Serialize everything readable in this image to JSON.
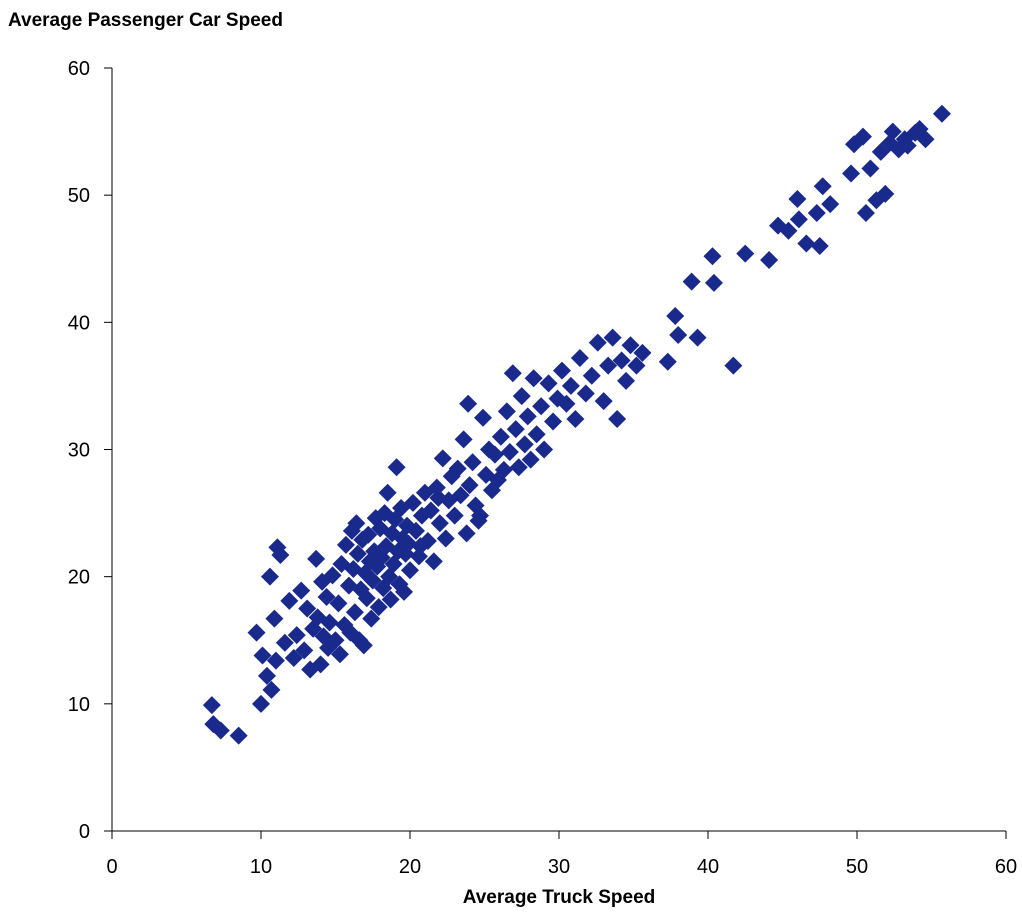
{
  "chart_data": {
    "type": "scatter",
    "title": "",
    "xlabel": "Average Truck Speed",
    "ylabel": "Average Passenger Car Speed",
    "xlim": [
      0,
      60
    ],
    "ylim": [
      0,
      60
    ],
    "x_ticks": [
      0,
      10,
      20,
      30,
      40,
      50,
      60
    ],
    "y_ticks": [
      0,
      10,
      20,
      30,
      40,
      50,
      60
    ],
    "grid": false,
    "legend": "none",
    "marker": "diamond",
    "marker_color": "#1a2a8c",
    "series": [
      {
        "points": [
          [
            6.7,
            9.9
          ],
          [
            6.8,
            8.4
          ],
          [
            7.3,
            7.9
          ],
          [
            8.5,
            7.5
          ],
          [
            9.7,
            15.6
          ],
          [
            10.0,
            10.0
          ],
          [
            10.1,
            13.8
          ],
          [
            10.4,
            12.2
          ],
          [
            10.6,
            20.0
          ],
          [
            10.7,
            11.1
          ],
          [
            10.9,
            16.7
          ],
          [
            11.0,
            13.4
          ],
          [
            11.1,
            22.3
          ],
          [
            11.3,
            21.7
          ],
          [
            11.6,
            14.8
          ],
          [
            11.9,
            18.1
          ],
          [
            12.2,
            13.6
          ],
          [
            12.4,
            15.4
          ],
          [
            12.7,
            18.9
          ],
          [
            12.9,
            14.2
          ],
          [
            13.1,
            17.5
          ],
          [
            13.3,
            12.7
          ],
          [
            13.5,
            15.9
          ],
          [
            13.7,
            21.4
          ],
          [
            13.8,
            16.8
          ],
          [
            14.0,
            13.1
          ],
          [
            14.1,
            19.6
          ],
          [
            14.2,
            15.3
          ],
          [
            14.4,
            18.4
          ],
          [
            14.5,
            14.4
          ],
          [
            14.6,
            16.4
          ],
          [
            14.8,
            20.1
          ],
          [
            15.0,
            15.0
          ],
          [
            15.2,
            17.9
          ],
          [
            15.3,
            13.9
          ],
          [
            15.4,
            21.0
          ],
          [
            15.6,
            16.2
          ],
          [
            15.7,
            22.5
          ],
          [
            15.9,
            19.3
          ],
          [
            16.0,
            15.6
          ],
          [
            16.1,
            23.6
          ],
          [
            16.2,
            20.6
          ],
          [
            16.3,
            17.2
          ],
          [
            16.4,
            24.2
          ],
          [
            16.5,
            21.8
          ],
          [
            16.6,
            15.0
          ],
          [
            16.7,
            19.0
          ],
          [
            16.8,
            22.9
          ],
          [
            16.9,
            14.6
          ],
          [
            17.0,
            20.3
          ],
          [
            17.1,
            18.3
          ],
          [
            17.2,
            23.3
          ],
          [
            17.3,
            21.2
          ],
          [
            17.4,
            16.7
          ],
          [
            17.5,
            19.7
          ],
          [
            17.6,
            22.0
          ],
          [
            17.7,
            24.6
          ],
          [
            17.8,
            20.8
          ],
          [
            17.9,
            17.6
          ],
          [
            18.0,
            23.8
          ],
          [
            18.1,
            21.5
          ],
          [
            18.2,
            19.1
          ],
          [
            18.3,
            25.0
          ],
          [
            18.4,
            22.4
          ],
          [
            18.5,
            26.6
          ],
          [
            18.6,
            20.0
          ],
          [
            18.7,
            18.2
          ],
          [
            18.8,
            23.4
          ],
          [
            18.9,
            21.0
          ],
          [
            19.0,
            24.5
          ],
          [
            19.1,
            28.6
          ],
          [
            19.2,
            22.0
          ],
          [
            19.3,
            19.4
          ],
          [
            19.4,
            25.4
          ],
          [
            19.5,
            23.0
          ],
          [
            19.6,
            18.8
          ],
          [
            19.7,
            21.8
          ],
          [
            19.8,
            24.0
          ],
          [
            19.9,
            22.6
          ],
          [
            20.0,
            20.5
          ],
          [
            20.2,
            25.8
          ],
          [
            20.4,
            23.6
          ],
          [
            20.6,
            21.6
          ],
          [
            20.8,
            24.8
          ],
          [
            21.0,
            26.6
          ],
          [
            21.2,
            22.8
          ],
          [
            21.4,
            25.2
          ],
          [
            21.6,
            21.2
          ],
          [
            21.8,
            27.0
          ],
          [
            22.0,
            24.2
          ],
          [
            22.2,
            29.3
          ],
          [
            22.4,
            23.0
          ],
          [
            22.6,
            26.0
          ],
          [
            22.8,
            27.9
          ],
          [
            23.0,
            24.8
          ],
          [
            23.2,
            28.5
          ],
          [
            23.4,
            26.4
          ],
          [
            23.6,
            30.8
          ],
          [
            23.8,
            23.4
          ],
          [
            24.0,
            27.2
          ],
          [
            24.2,
            29.0
          ],
          [
            24.4,
            25.6
          ],
          [
            24.6,
            24.4
          ],
          [
            24.9,
            32.5
          ],
          [
            25.1,
            28.0
          ],
          [
            25.3,
            30.0
          ],
          [
            25.5,
            26.8
          ],
          [
            25.7,
            29.6
          ],
          [
            25.9,
            27.6
          ],
          [
            26.1,
            31.0
          ],
          [
            26.3,
            28.4
          ],
          [
            26.5,
            33.0
          ],
          [
            26.7,
            29.8
          ],
          [
            26.9,
            36.0
          ],
          [
            27.1,
            31.6
          ],
          [
            27.3,
            28.6
          ],
          [
            27.5,
            34.2
          ],
          [
            27.7,
            30.4
          ],
          [
            27.9,
            32.6
          ],
          [
            28.1,
            29.2
          ],
          [
            28.3,
            35.6
          ],
          [
            28.5,
            31.2
          ],
          [
            28.8,
            33.4
          ],
          [
            29.0,
            30.0
          ],
          [
            29.3,
            35.2
          ],
          [
            29.6,
            32.2
          ],
          [
            29.9,
            34.0
          ],
          [
            30.2,
            36.2
          ],
          [
            30.5,
            33.6
          ],
          [
            30.8,
            35.0
          ],
          [
            31.1,
            32.4
          ],
          [
            31.4,
            37.2
          ],
          [
            31.8,
            34.4
          ],
          [
            32.2,
            35.8
          ],
          [
            32.6,
            38.4
          ],
          [
            33.0,
            33.8
          ],
          [
            33.3,
            36.6
          ],
          [
            33.6,
            38.8
          ],
          [
            33.9,
            32.4
          ],
          [
            34.2,
            37.0
          ],
          [
            34.5,
            35.4
          ],
          [
            34.8,
            38.2
          ],
          [
            35.2,
            36.6
          ],
          [
            35.6,
            37.6
          ],
          [
            23.9,
            33.6
          ],
          [
            21.9,
            26.2
          ],
          [
            20.7,
            22.4
          ],
          [
            24.7,
            24.8
          ],
          [
            37.3,
            36.9
          ],
          [
            37.8,
            40.5
          ],
          [
            38.0,
            39.0
          ],
          [
            38.9,
            43.2
          ],
          [
            39.3,
            38.8
          ],
          [
            40.3,
            45.2
          ],
          [
            40.4,
            43.1
          ],
          [
            41.7,
            36.6
          ],
          [
            42.5,
            45.4
          ],
          [
            44.1,
            44.9
          ],
          [
            44.7,
            47.6
          ],
          [
            45.4,
            47.2
          ],
          [
            46.0,
            49.7
          ],
          [
            46.1,
            48.1
          ],
          [
            46.6,
            46.2
          ],
          [
            47.3,
            48.6
          ],
          [
            47.5,
            46.0
          ],
          [
            47.7,
            50.7
          ],
          [
            48.2,
            49.3
          ],
          [
            49.6,
            51.7
          ],
          [
            49.8,
            54.0
          ],
          [
            50.4,
            54.6
          ],
          [
            50.6,
            48.6
          ],
          [
            50.9,
            52.1
          ],
          [
            51.3,
            49.6
          ],
          [
            51.6,
            53.4
          ],
          [
            51.9,
            50.1
          ],
          [
            52.2,
            54.1
          ],
          [
            52.4,
            55.0
          ],
          [
            52.8,
            53.6
          ],
          [
            53.2,
            54.4
          ],
          [
            53.4,
            53.9
          ],
          [
            53.9,
            54.9
          ],
          [
            54.2,
            55.2
          ],
          [
            54.6,
            54.4
          ],
          [
            55.7,
            56.4
          ]
        ]
      }
    ]
  }
}
